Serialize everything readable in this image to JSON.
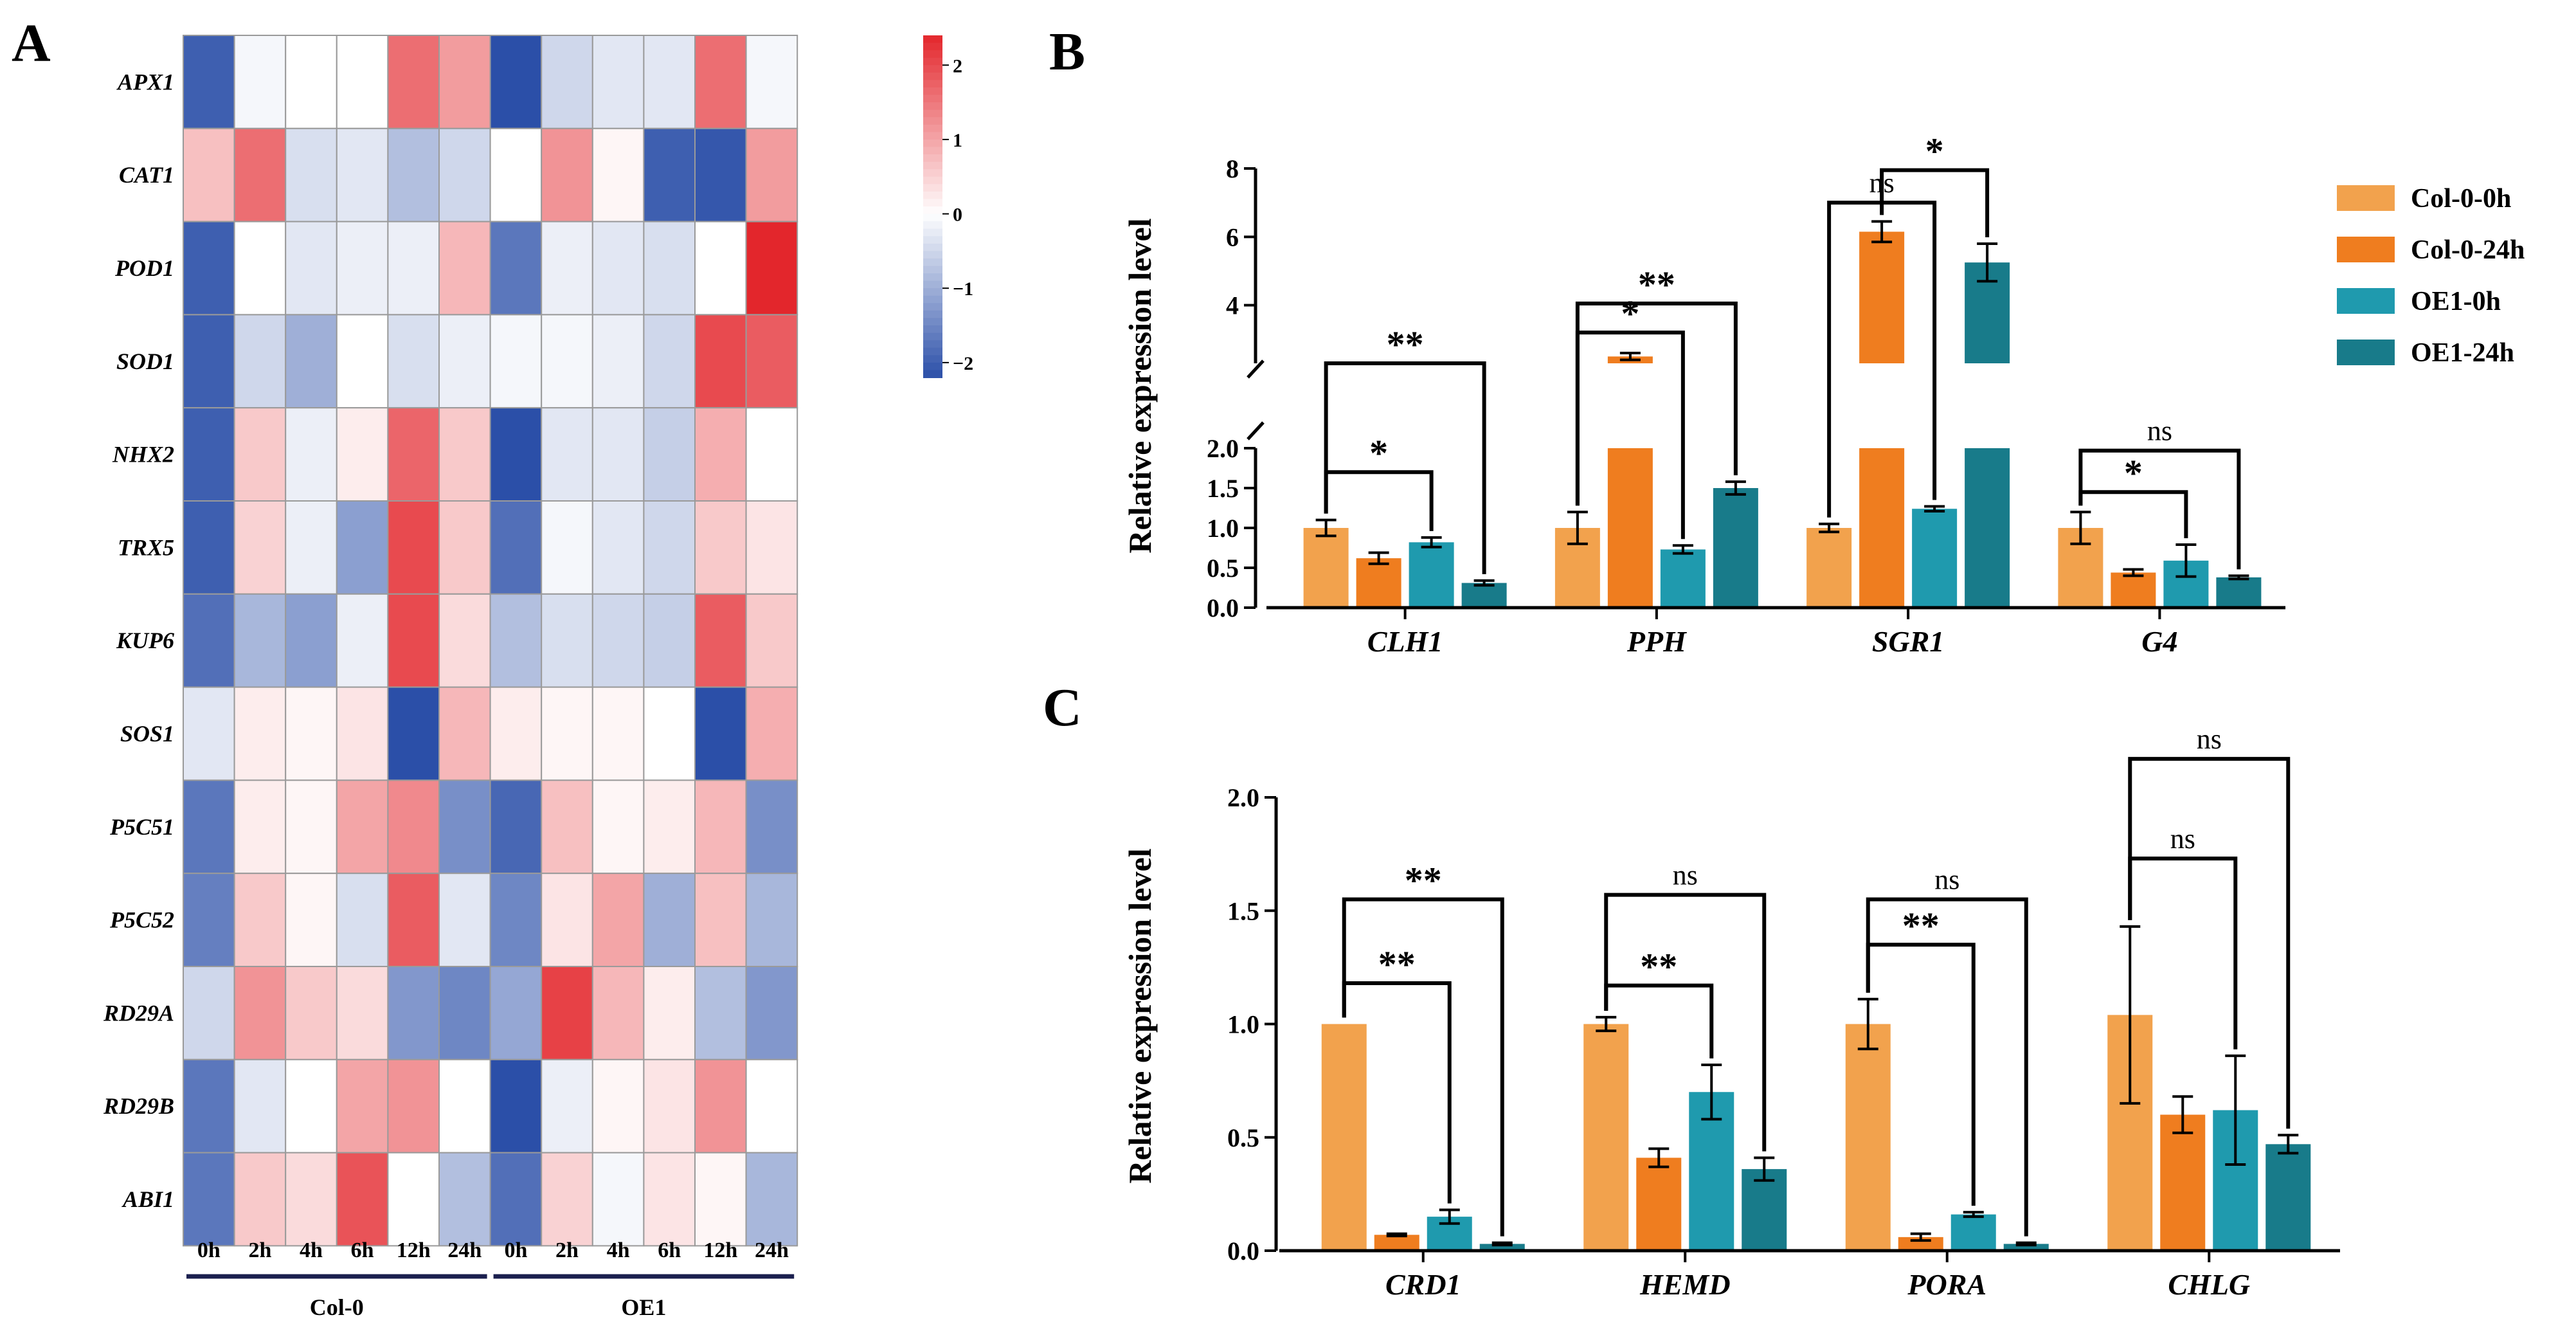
{
  "colors": {
    "heat_low": "#2b4fa8",
    "heat_mid": "#ffffff",
    "heat_high": "#e3262c",
    "series": [
      "#f2a24d",
      "#ef7d1f",
      "#1f9aae",
      "#187b8a"
    ]
  },
  "chart_data": [
    {
      "panel": "A",
      "type": "heatmap",
      "title": "",
      "rows": [
        "APX1",
        "CAT1",
        "POD1",
        "SOD1",
        "NHX2",
        "TRX5",
        "KUP6",
        "SOS1",
        "P5C51",
        "P5C52",
        "RD29A",
        "RD29B",
        "ABI1"
      ],
      "columns": [
        "0h",
        "2h",
        "4h",
        "6h",
        "12h",
        "24h",
        "0h",
        "2h",
        "4h",
        "6h",
        "12h",
        "24h"
      ],
      "groups": [
        {
          "label": "Col-0",
          "columns": [
            0,
            1,
            2,
            3,
            4,
            5
          ]
        },
        {
          "label": "OE1",
          "columns": [
            6,
            7,
            8,
            9,
            10,
            11
          ]
        }
      ],
      "colorbar": {
        "min": -2.2,
        "max": 2.4,
        "ticks": [
          2,
          1,
          0,
          -1,
          -2
        ],
        "tick_labels": [
          "2",
          "1",
          "0",
          "−1",
          "−2"
        ]
      },
      "values": [
        [
          -2.0,
          -0.1,
          0.0,
          0.0,
          1.6,
          1.1,
          -2.2,
          -0.5,
          -0.3,
          -0.3,
          1.6,
          -0.1
        ],
        [
          0.7,
          1.6,
          -0.4,
          -0.3,
          -0.8,
          -0.5,
          0.0,
          1.2,
          0.1,
          -2.0,
          -2.1,
          1.1
        ],
        [
          -2.0,
          0.0,
          -0.3,
          -0.2,
          -0.2,
          0.8,
          -1.7,
          -0.2,
          -0.3,
          -0.4,
          0.0,
          2.4
        ],
        [
          -2.0,
          -0.5,
          -1.0,
          0.0,
          -0.4,
          -0.2,
          -0.1,
          -0.1,
          -0.2,
          -0.5,
          2.0,
          1.8
        ],
        [
          -2.0,
          0.6,
          -0.2,
          0.2,
          1.7,
          0.6,
          -2.2,
          -0.3,
          -0.3,
          -0.6,
          0.9,
          0.0
        ],
        [
          -2.0,
          0.5,
          -0.2,
          -1.2,
          2.0,
          0.6,
          -1.8,
          -0.1,
          -0.3,
          -0.5,
          0.6,
          0.3
        ],
        [
          -1.8,
          -0.9,
          -1.2,
          -0.2,
          2.0,
          0.4,
          -0.8,
          -0.4,
          -0.5,
          -0.6,
          1.8,
          0.6
        ],
        [
          -0.3,
          0.2,
          0.1,
          0.3,
          -2.2,
          0.8,
          0.2,
          0.1,
          0.1,
          0.0,
          -2.2,
          0.9
        ],
        [
          -1.7,
          0.2,
          0.1,
          1.0,
          1.3,
          -1.4,
          -1.9,
          0.7,
          0.1,
          0.2,
          0.8,
          -1.4
        ],
        [
          -1.6,
          0.6,
          0.1,
          -0.4,
          1.8,
          -0.3,
          -1.5,
          0.3,
          1.0,
          -1.0,
          0.7,
          -0.9
        ],
        [
          -0.5,
          1.2,
          0.6,
          0.4,
          -1.3,
          -1.5,
          -1.1,
          2.1,
          0.8,
          0.2,
          -0.8,
          -1.3
        ],
        [
          -1.7,
          -0.3,
          0.0,
          1.0,
          1.2,
          0.0,
          -2.2,
          -0.2,
          0.1,
          0.3,
          1.2,
          0.0
        ],
        [
          -1.7,
          0.6,
          0.4,
          1.9,
          0.0,
          -0.8,
          -1.8,
          0.5,
          -0.1,
          0.3,
          0.1,
          -0.9
        ]
      ]
    },
    {
      "panel": "B",
      "type": "bar",
      "title": "",
      "xlabel": "",
      "ylabel": "Relative expression level",
      "categories": [
        "CLH1",
        "PPH",
        "SGR1",
        "G4"
      ],
      "series": [
        {
          "name": "Col-0-0h",
          "values": [
            1.0,
            1.0,
            1.0,
            1.0
          ],
          "errors": [
            0.1,
            0.2,
            0.05,
            0.2
          ]
        },
        {
          "name": "Col-0-24h",
          "values": [
            0.62,
            2.5,
            6.15,
            0.44
          ],
          "errors": [
            0.07,
            0.1,
            0.3,
            0.04
          ]
        },
        {
          "name": "OE1-0h",
          "values": [
            0.82,
            0.73,
            1.24,
            0.59
          ],
          "errors": [
            0.06,
            0.05,
            0.03,
            0.2
          ]
        },
        {
          "name": "OE1-24h",
          "values": [
            0.31,
            1.5,
            5.25,
            0.38
          ],
          "errors": [
            0.03,
            0.08,
            0.55,
            0.02
          ]
        }
      ],
      "axis_break": {
        "lower_max": 2.0,
        "upper_min": 2.3,
        "upper_max": 8
      },
      "yticks_lower": [
        0.0,
        0.5,
        1.0,
        1.5,
        2.0
      ],
      "ytick_labels_lower": [
        "0.0",
        "0.5",
        "1.0",
        "1.5",
        "2.0"
      ],
      "yticks_upper": [
        4,
        6,
        8
      ],
      "ytick_labels_upper": [
        "4",
        "6",
        "8"
      ],
      "significance": [
        {
          "category": 0,
          "from": 0,
          "to": 2,
          "label": "*",
          "level": 1.7
        },
        {
          "category": 0,
          "from": 0,
          "to": 3,
          "label": "**",
          "level": 2.2
        },
        {
          "category": 1,
          "from": 0,
          "to": 2,
          "label": "*",
          "level": 3.2
        },
        {
          "category": 1,
          "from": 0,
          "to": 3,
          "label": "**",
          "level": 4.05
        },
        {
          "category": 2,
          "from": 0,
          "to": 2,
          "label": "ns",
          "level": 7.0
        },
        {
          "category": 2,
          "from": 1,
          "to": 3,
          "label": "*",
          "level": 7.95
        },
        {
          "category": 3,
          "from": 0,
          "to": 2,
          "label": "*",
          "level": 1.45
        },
        {
          "category": 3,
          "from": 0,
          "to": 3,
          "label": "ns",
          "level": 1.97
        }
      ]
    },
    {
      "panel": "C",
      "type": "bar",
      "title": "",
      "xlabel": "",
      "ylabel": "Relative expression level",
      "categories": [
        "CRD1",
        "HEMD",
        "PORA",
        "CHLG"
      ],
      "series": [
        {
          "name": "Col-0-0h",
          "values": [
            1.0,
            1.0,
            1.0,
            1.04
          ],
          "errors": [
            0.0,
            0.03,
            0.11,
            0.39
          ]
        },
        {
          "name": "Col-0-24h",
          "values": [
            0.07,
            0.41,
            0.06,
            0.6
          ],
          "errors": [
            0.005,
            0.04,
            0.015,
            0.08
          ]
        },
        {
          "name": "OE1-0h",
          "values": [
            0.15,
            0.7,
            0.16,
            0.62
          ],
          "errors": [
            0.03,
            0.12,
            0.01,
            0.24
          ]
        },
        {
          "name": "OE1-24h",
          "values": [
            0.03,
            0.36,
            0.03,
            0.47
          ],
          "errors": [
            0.005,
            0.05,
            0.005,
            0.04
          ]
        }
      ],
      "ylim": [
        0,
        2.0
      ],
      "yticks": [
        0.0,
        0.5,
        1.0,
        1.5,
        2.0
      ],
      "ytick_labels": [
        "0.0",
        "0.5",
        "1.0",
        "1.5",
        "2.0"
      ],
      "significance": [
        {
          "category": 0,
          "from": 0,
          "to": 2,
          "label": "**",
          "level": 1.18
        },
        {
          "category": 0,
          "from": 0,
          "to": 3,
          "label": "**",
          "level": 1.55
        },
        {
          "category": 1,
          "from": 0,
          "to": 2,
          "label": "**",
          "level": 1.17
        },
        {
          "category": 1,
          "from": 0,
          "to": 3,
          "label": "ns",
          "level": 1.57
        },
        {
          "category": 2,
          "from": 0,
          "to": 2,
          "label": "**",
          "level": 1.35
        },
        {
          "category": 2,
          "from": 0,
          "to": 3,
          "label": "ns",
          "level": 1.55
        },
        {
          "category": 3,
          "from": 0,
          "to": 2,
          "label": "ns",
          "level": 1.73
        },
        {
          "category": 3,
          "from": 0,
          "to": 3,
          "label": "ns",
          "level": 2.17
        }
      ]
    }
  ]
}
